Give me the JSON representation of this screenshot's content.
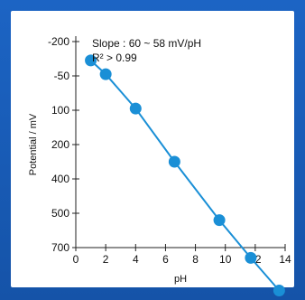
{
  "chart_data": {
    "type": "line",
    "title": "",
    "xlabel": "pH",
    "ylabel": "Potential / mV",
    "x_ticks": [
      0,
      2,
      4,
      6,
      8,
      10,
      12,
      14
    ],
    "y_tick_labels": [
      "-200",
      "-50",
      "100",
      "200",
      "400",
      "500",
      "700"
    ],
    "xlim": [
      0,
      14
    ],
    "annotations": [
      "Slope : 60 ~ 58 mV/pH",
      "R² > 0.99"
    ],
    "series": [
      {
        "color": "#1a8fd6",
        "x": [
          1.0,
          2.0,
          4.0,
          6.6,
          9.6,
          11.7,
          13.6
        ],
        "y_level": [
          0.55,
          0.95,
          1.95,
          3.5,
          5.2,
          6.3,
          7.25
        ]
      }
    ],
    "y_levels_note_removed": true,
    "grid": false,
    "legend": "none"
  }
}
